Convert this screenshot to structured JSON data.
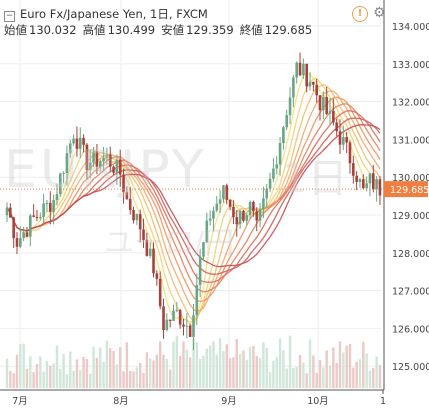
{
  "legend": {
    "toggle_icon": "collapse-icon",
    "title": "Euro Fx/Japanese Yen, 1日, FXCM",
    "open_label": "始値",
    "open_value": "130.032",
    "high_label": "高値",
    "high_value": "130.499",
    "low_label": "安値",
    "low_value": "129.359",
    "close_label": "終値",
    "close_value": "129.685"
  },
  "watermark": {
    "symbol": "EURJPY",
    "interval": "1日",
    "name": "ユーロ/円"
  },
  "icons": {
    "alert": "alert-icon",
    "settings": "settings-icon"
  },
  "chart_data": {
    "type": "candlestick",
    "y_ticks": [
      "134.000",
      "133.000",
      "132.000",
      "131.000",
      "130.000",
      "129.000",
      "128.000",
      "127.000",
      "126.000",
      "125.000"
    ],
    "x_ticks": [
      "7月",
      "8月",
      "9月",
      "10月"
    ],
    "last_price_label": "129.685",
    "colors": {
      "up": "#6aa585",
      "down": "#a8413a",
      "last_price": "#f07e3f"
    }
  }
}
